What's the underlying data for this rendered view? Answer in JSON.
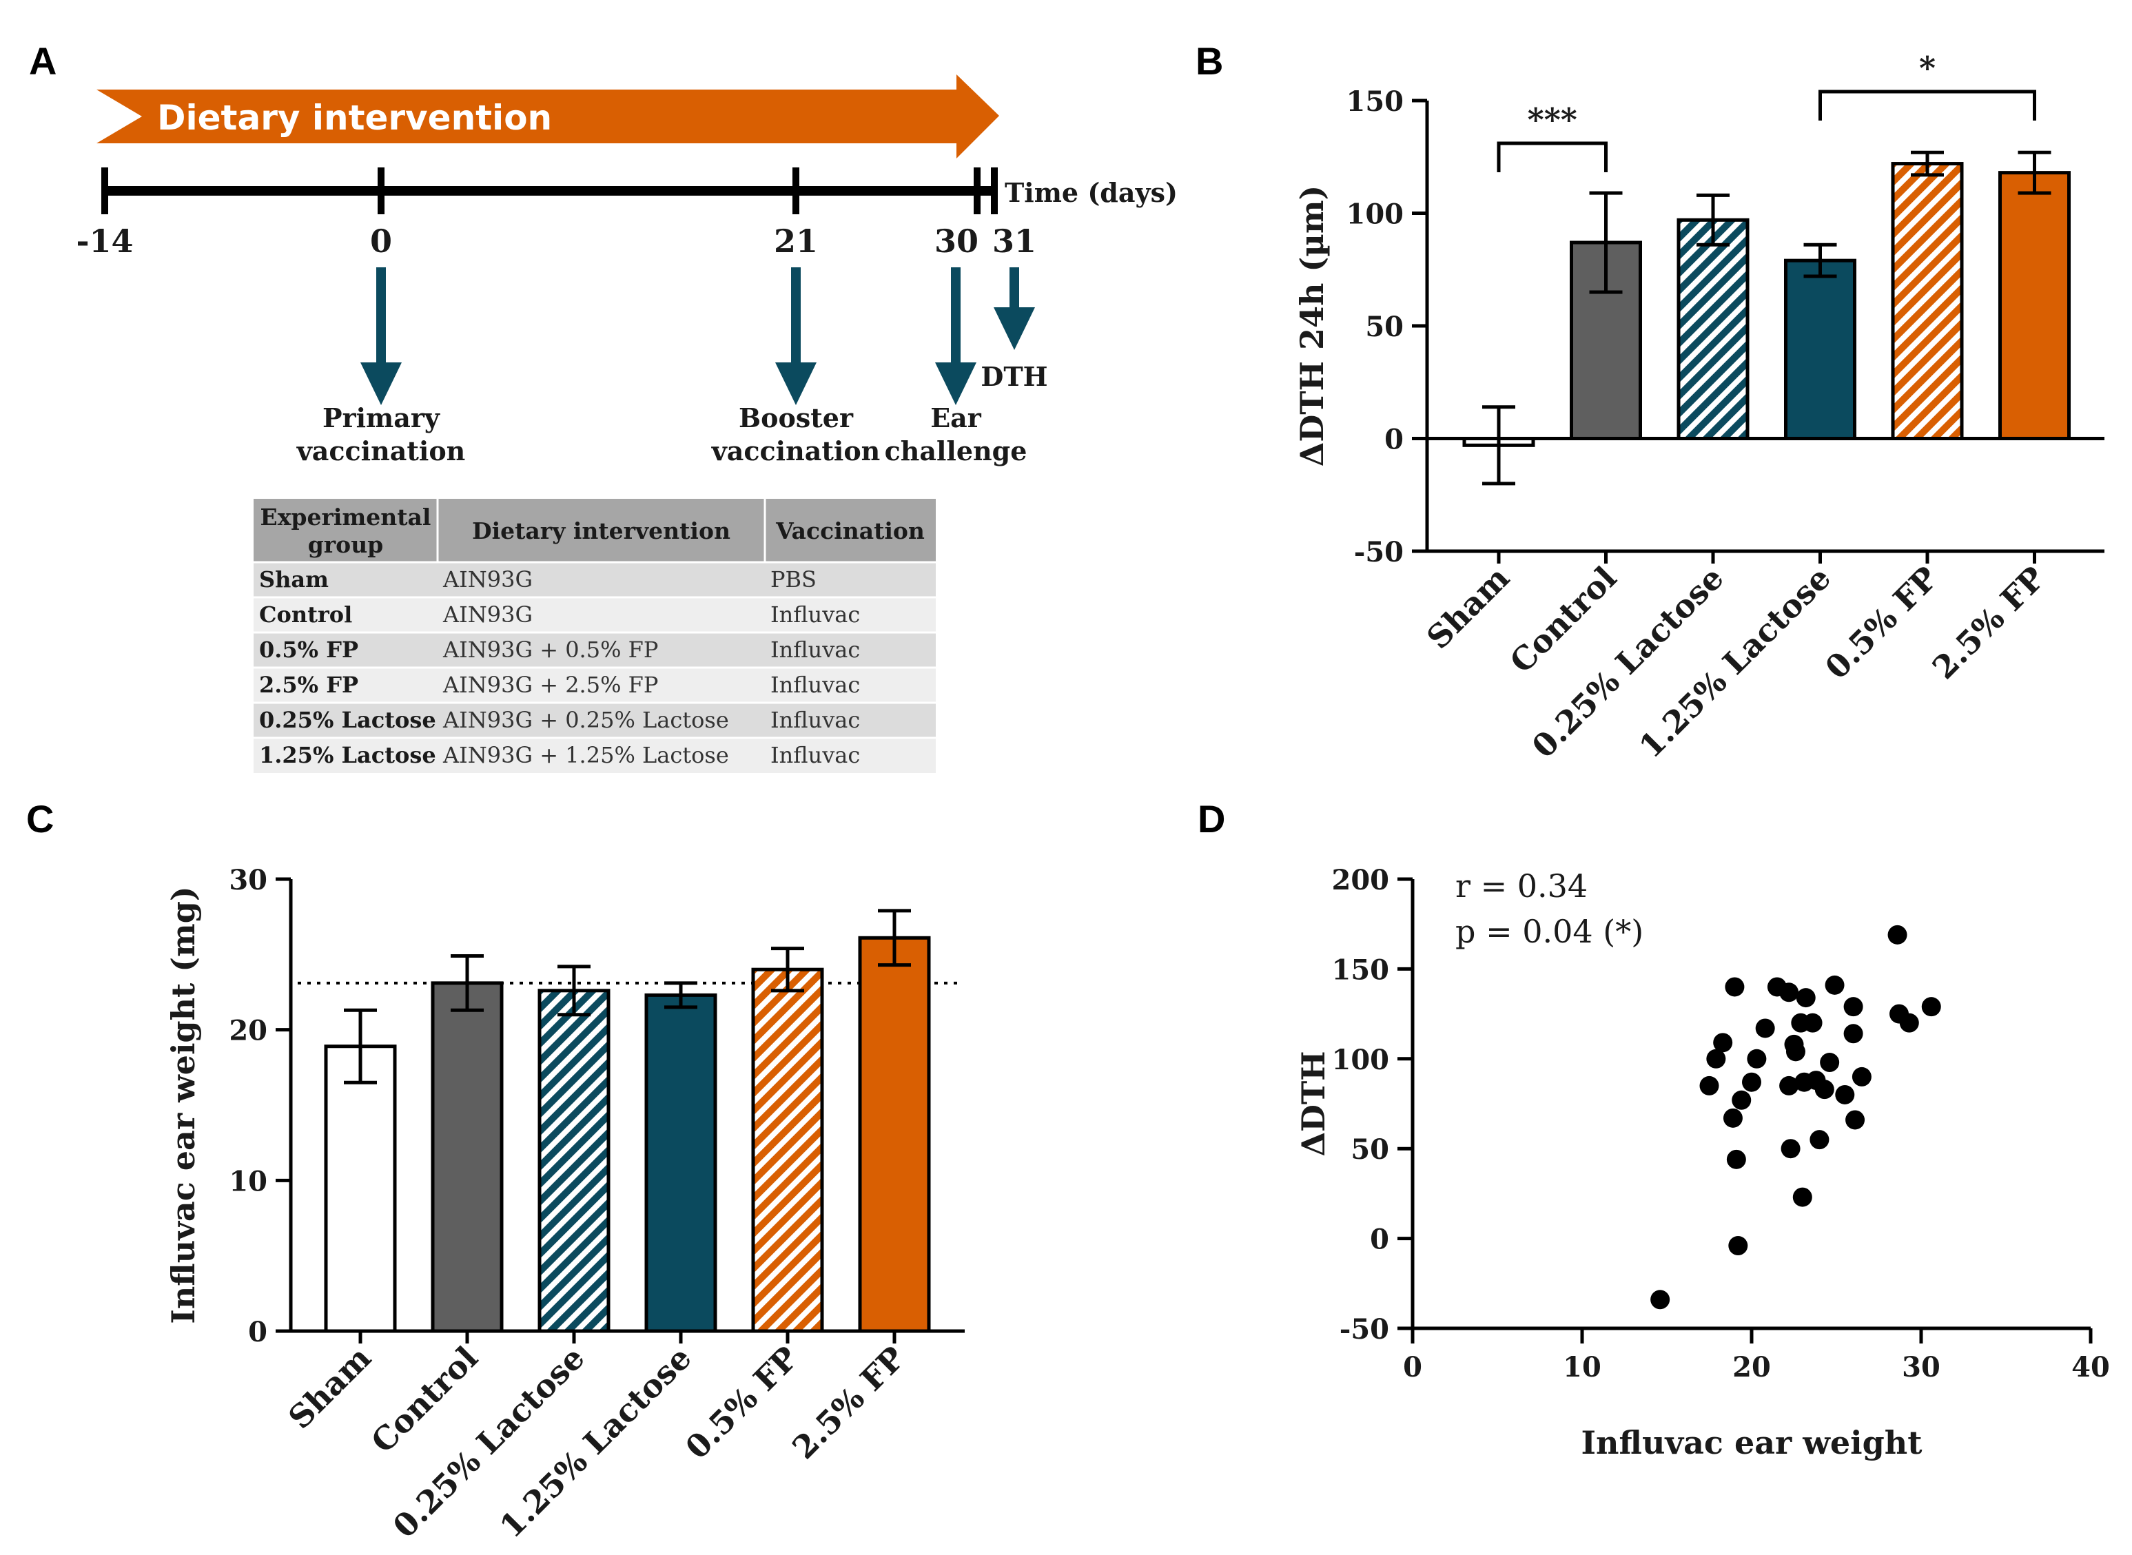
{
  "panels": {
    "a": "A",
    "b": "B",
    "c": "C",
    "d": "D"
  },
  "colors": {
    "orange": "#D95F02",
    "teal": "#0B4A5E",
    "gray": "#5F5F5F",
    "white": "#FFFFFF",
    "table_header": "#A6A6A6",
    "table_row_dark": "#DCDCDC",
    "table_row_light": "#EEEEEE"
  },
  "timeline": {
    "banner": "Dietary intervention",
    "time_label": "Time (days)",
    "days": [
      "-14",
      "0",
      "21",
      "30",
      "31"
    ],
    "events": [
      {
        "day": "0",
        "line1": "Primary",
        "line2": "vaccination"
      },
      {
        "day": "21",
        "line1": "Booster",
        "line2": "vaccination"
      },
      {
        "day": "30",
        "line1": "Ear",
        "line2": "challenge"
      },
      {
        "day": "31",
        "line1": "DTH",
        "line2": ""
      }
    ]
  },
  "table": {
    "headers": {
      "group_line1": "Experimental",
      "group_line2": "group",
      "diet": "Dietary intervention",
      "vacc": "Vaccination"
    },
    "rows": [
      {
        "group": "Sham",
        "diet": "AIN93G",
        "vacc": "PBS"
      },
      {
        "group": "Control",
        "diet": "AIN93G",
        "vacc": "Influvac"
      },
      {
        "group": "0.5% FP",
        "diet": "AIN93G + 0.5% FP",
        "vacc": "Influvac"
      },
      {
        "group": "2.5% FP",
        "diet": "AIN93G + 2.5% FP",
        "vacc": "Influvac"
      },
      {
        "group": "0.25% Lactose",
        "diet": "AIN93G + 0.25% Lactose",
        "vacc": "Influvac"
      },
      {
        "group": "1.25% Lactose",
        "diet": "AIN93G + 1.25% Lactose",
        "vacc": "Influvac"
      }
    ]
  },
  "chart_data": [
    {
      "panel": "B",
      "type": "bar",
      "ylabel": "ΔDTH 24h (µm)",
      "ylim": [
        -50,
        150
      ],
      "yticks": [
        "-50",
        "0",
        "50",
        "100",
        "150"
      ],
      "categories": [
        "Sham",
        "Control",
        "0.25% Lactose",
        "1.25% Lactose",
        "0.5% FP",
        "2.5% FP"
      ],
      "values": [
        -3,
        87,
        97,
        79,
        122,
        118
      ],
      "errors": [
        17,
        22,
        11,
        7,
        5,
        9
      ],
      "fills": [
        "white",
        "gray",
        "teal-hatch",
        "teal",
        "orange-hatch",
        "orange"
      ],
      "significance": [
        {
          "from": "Sham",
          "to": "Control",
          "label": "***"
        },
        {
          "from": "1.25% Lactose",
          "to": "2.5% FP",
          "label": "*"
        }
      ]
    },
    {
      "panel": "C",
      "type": "bar",
      "ylabel": "Influvac ear weight (mg)",
      "ylim": [
        0,
        30
      ],
      "yticks": [
        "0",
        "10",
        "20",
        "30"
      ],
      "categories": [
        "Sham",
        "Control",
        "0.25% Lactose",
        "1.25% Lactose",
        "0.5% FP",
        "2.5% FP"
      ],
      "values": [
        18.9,
        23.1,
        22.6,
        22.3,
        24.0,
        26.1
      ],
      "errors": [
        2.4,
        1.8,
        1.6,
        0.8,
        1.4,
        1.8
      ],
      "fills": [
        "white",
        "gray",
        "teal-hatch",
        "teal",
        "orange-hatch",
        "orange"
      ],
      "reference_line": 23.1
    },
    {
      "panel": "D",
      "type": "scatter",
      "xlabel": "Influvac ear weight",
      "ylabel": "ΔDTH",
      "xlim": [
        0,
        40
      ],
      "ylim": [
        -50,
        200
      ],
      "xticks": [
        "0",
        "10",
        "20",
        "30",
        "40"
      ],
      "yticks": [
        "-50",
        "0",
        "50",
        "100",
        "150",
        "200"
      ],
      "annotation_r": "r = 0.34",
      "annotation_p": "p = 0.04 (*)",
      "points": [
        [
          14.6,
          -34
        ],
        [
          17.5,
          85
        ],
        [
          17.9,
          100
        ],
        [
          18.3,
          109
        ],
        [
          18.9,
          67
        ],
        [
          19.0,
          140
        ],
        [
          19.1,
          44
        ],
        [
          19.2,
          -4
        ],
        [
          19.4,
          77
        ],
        [
          20.0,
          87
        ],
        [
          20.3,
          100
        ],
        [
          20.8,
          117
        ],
        [
          21.5,
          140
        ],
        [
          22.2,
          137
        ],
        [
          22.2,
          85
        ],
        [
          22.3,
          50
        ],
        [
          22.5,
          108
        ],
        [
          22.6,
          104
        ],
        [
          22.9,
          120
        ],
        [
          23.0,
          23
        ],
        [
          23.1,
          87
        ],
        [
          23.2,
          134
        ],
        [
          23.6,
          120
        ],
        [
          23.8,
          88
        ],
        [
          24.0,
          55
        ],
        [
          24.3,
          83
        ],
        [
          24.6,
          98
        ],
        [
          24.9,
          141
        ],
        [
          25.5,
          80
        ],
        [
          26.0,
          129
        ],
        [
          26.0,
          114
        ],
        [
          26.1,
          66
        ],
        [
          26.5,
          90
        ],
        [
          28.6,
          169
        ],
        [
          28.7,
          125
        ],
        [
          29.3,
          120
        ],
        [
          30.6,
          129
        ]
      ]
    }
  ]
}
